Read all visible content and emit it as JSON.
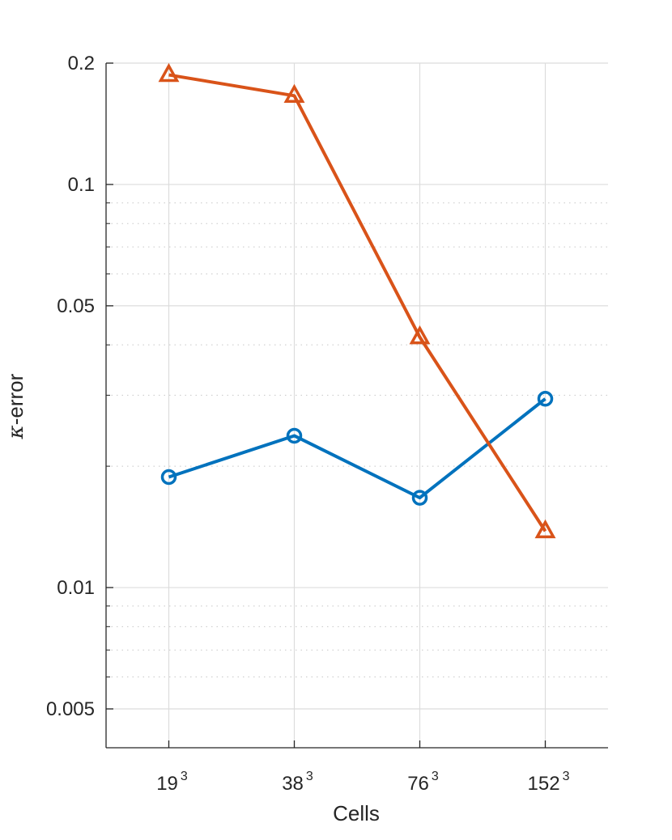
{
  "chart_data": {
    "type": "line",
    "xlabel": "Cells",
    "ylabel_symbol": "κ",
    "ylabel_suffix": "-error",
    "y_scale": "log",
    "ylim": [
      0.0042,
      0.2
    ],
    "grid": true,
    "minor_grid": true,
    "x_ticks": [
      {
        "base": "19",
        "exp": "3"
      },
      {
        "base": "38",
        "exp": "3"
      },
      {
        "base": "76",
        "exp": "3"
      },
      {
        "base": "152",
        "exp": "3"
      }
    ],
    "y_ticks": [
      {
        "value": 0.2,
        "label": "0.2"
      },
      {
        "value": 0.1,
        "label": "0.1"
      },
      {
        "value": 0.05,
        "label": "0.05"
      },
      {
        "value": 0.01,
        "label": "0.01"
      },
      {
        "value": 0.005,
        "label": "0.005"
      }
    ],
    "y_minor_ticks": [
      0.006,
      0.007,
      0.008,
      0.009,
      0.02,
      0.03,
      0.04,
      0.06,
      0.07,
      0.08,
      0.09
    ],
    "series": [
      {
        "marker": "circle",
        "color": "#0072BD",
        "values": [
          0.0188,
          0.0238,
          0.0167,
          0.0294
        ]
      },
      {
        "marker": "triangle",
        "color": "#D95319",
        "values": [
          0.187,
          0.166,
          0.0418,
          0.0138
        ]
      }
    ]
  }
}
